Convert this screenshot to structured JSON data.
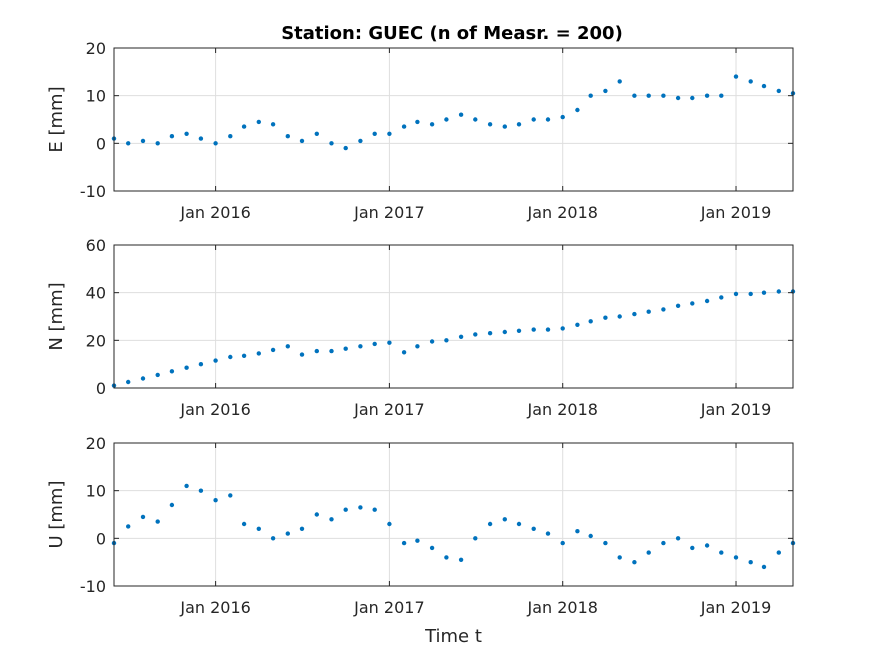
{
  "chart_data": [
    {
      "type": "scatter",
      "title": "Station: GUEC (n of Measr. = 200)",
      "ylabel": "E [mm]",
      "xlabel": "",
      "xlim": [
        "2015-06-01",
        "2019-05-01"
      ],
      "ylim": [
        -10,
        20
      ],
      "yticks": [
        -10,
        0,
        10,
        20
      ],
      "xticks": [
        {
          "date": "2016-01-01",
          "label": "Jan 2016"
        },
        {
          "date": "2017-01-01",
          "label": "Jan 2017"
        },
        {
          "date": "2018-01-01",
          "label": "Jan 2018"
        },
        {
          "date": "2019-01-01",
          "label": "Jan 2019"
        }
      ],
      "grid": true,
      "color": "#0072BD",
      "series": [
        {
          "x": [
            "2015-06-01",
            "2015-07-01",
            "2015-08-01",
            "2015-09-01",
            "2015-10-01",
            "2015-11-01",
            "2015-12-01",
            "2016-01-01",
            "2016-02-01",
            "2016-03-01",
            "2016-04-01",
            "2016-05-01",
            "2016-06-01",
            "2016-07-01",
            "2016-08-01",
            "2016-09-01",
            "2016-10-01",
            "2016-11-01",
            "2016-12-01",
            "2017-01-01",
            "2017-02-01",
            "2017-03-01",
            "2017-04-01",
            "2017-05-01",
            "2017-06-01",
            "2017-07-01",
            "2017-08-01",
            "2017-09-01",
            "2017-10-01",
            "2017-11-01",
            "2017-12-01",
            "2018-01-01",
            "2018-02-01",
            "2018-03-01",
            "2018-04-01",
            "2018-05-01",
            "2018-06-01",
            "2018-07-01",
            "2018-08-01",
            "2018-09-01",
            "2018-10-01",
            "2018-11-01",
            "2018-12-01",
            "2019-01-01",
            "2019-02-01",
            "2019-03-01",
            "2019-04-01",
            "2019-05-01"
          ],
          "y": [
            1.0,
            0.0,
            0.5,
            0.0,
            1.5,
            2.0,
            1.0,
            0.0,
            1.5,
            3.5,
            4.5,
            4.0,
            1.5,
            0.5,
            2.0,
            0.0,
            -1.0,
            0.5,
            2.0,
            2.0,
            3.5,
            4.5,
            4.0,
            5.0,
            6.0,
            5.0,
            4.0,
            3.5,
            4.0,
            5.0,
            5.0,
            5.5,
            7.0,
            10.0,
            11.0,
            13.0,
            10.0,
            10.0,
            10.0,
            9.5,
            9.5,
            10.0,
            10.0,
            14.0,
            13.0,
            12.0,
            11.0,
            10.5
          ]
        }
      ]
    },
    {
      "type": "scatter",
      "title": "",
      "ylabel": "N [mm]",
      "xlabel": "",
      "xlim": [
        "2015-06-01",
        "2019-05-01"
      ],
      "ylim": [
        0,
        60
      ],
      "yticks": [
        0,
        20,
        40,
        60
      ],
      "xticks": [
        {
          "date": "2016-01-01",
          "label": "Jan 2016"
        },
        {
          "date": "2017-01-01",
          "label": "Jan 2017"
        },
        {
          "date": "2018-01-01",
          "label": "Jan 2018"
        },
        {
          "date": "2019-01-01",
          "label": "Jan 2019"
        }
      ],
      "grid": true,
      "color": "#0072BD",
      "series": [
        {
          "x": [
            "2015-06-01",
            "2015-07-01",
            "2015-08-01",
            "2015-09-01",
            "2015-10-01",
            "2015-11-01",
            "2015-12-01",
            "2016-01-01",
            "2016-02-01",
            "2016-03-01",
            "2016-04-01",
            "2016-05-01",
            "2016-06-01",
            "2016-07-01",
            "2016-08-01",
            "2016-09-01",
            "2016-10-01",
            "2016-11-01",
            "2016-12-01",
            "2017-01-01",
            "2017-02-01",
            "2017-03-01",
            "2017-04-01",
            "2017-05-01",
            "2017-06-01",
            "2017-07-01",
            "2017-08-01",
            "2017-09-01",
            "2017-10-01",
            "2017-11-01",
            "2017-12-01",
            "2018-01-01",
            "2018-02-01",
            "2018-03-01",
            "2018-04-01",
            "2018-05-01",
            "2018-06-01",
            "2018-07-01",
            "2018-08-01",
            "2018-09-01",
            "2018-10-01",
            "2018-11-01",
            "2018-12-01",
            "2019-01-01",
            "2019-02-01",
            "2019-03-01",
            "2019-04-01",
            "2019-05-01"
          ],
          "y": [
            1.0,
            2.5,
            4.0,
            5.5,
            7.0,
            8.5,
            10.0,
            11.5,
            13.0,
            13.5,
            14.5,
            16.0,
            17.5,
            14.0,
            15.5,
            15.5,
            16.5,
            17.5,
            18.5,
            19.0,
            15.0,
            17.5,
            19.5,
            20.0,
            21.5,
            22.5,
            23.0,
            23.5,
            24.0,
            24.5,
            24.5,
            25.0,
            26.5,
            28.0,
            29.5,
            30.0,
            31.0,
            32.0,
            33.0,
            34.5,
            35.5,
            36.5,
            38.0,
            39.5,
            39.5,
            40.0,
            40.5,
            40.5
          ]
        }
      ]
    },
    {
      "type": "scatter",
      "title": "",
      "ylabel": "U [mm]",
      "xlabel": "Time t",
      "xlim": [
        "2015-06-01",
        "2019-05-01"
      ],
      "ylim": [
        -10,
        20
      ],
      "yticks": [
        -10,
        0,
        10,
        20
      ],
      "xticks": [
        {
          "date": "2016-01-01",
          "label": "Jan 2016"
        },
        {
          "date": "2017-01-01",
          "label": "Jan 2017"
        },
        {
          "date": "2018-01-01",
          "label": "Jan 2018"
        },
        {
          "date": "2019-01-01",
          "label": "Jan 2019"
        }
      ],
      "grid": true,
      "color": "#0072BD",
      "series": [
        {
          "x": [
            "2015-06-01",
            "2015-07-01",
            "2015-08-01",
            "2015-09-01",
            "2015-10-01",
            "2015-11-01",
            "2015-12-01",
            "2016-01-01",
            "2016-02-01",
            "2016-03-01",
            "2016-04-01",
            "2016-05-01",
            "2016-06-01",
            "2016-07-01",
            "2016-08-01",
            "2016-09-01",
            "2016-10-01",
            "2016-11-01",
            "2016-12-01",
            "2017-01-01",
            "2017-02-01",
            "2017-03-01",
            "2017-04-01",
            "2017-05-01",
            "2017-06-01",
            "2017-07-01",
            "2017-08-01",
            "2017-09-01",
            "2017-10-01",
            "2017-11-01",
            "2017-12-01",
            "2018-01-01",
            "2018-02-01",
            "2018-03-01",
            "2018-04-01",
            "2018-05-01",
            "2018-06-01",
            "2018-07-01",
            "2018-08-01",
            "2018-09-01",
            "2018-10-01",
            "2018-11-01",
            "2018-12-01",
            "2019-01-01",
            "2019-02-01",
            "2019-03-01",
            "2019-04-01",
            "2019-05-01"
          ],
          "y": [
            -1.0,
            2.5,
            4.5,
            3.5,
            7.0,
            11.0,
            10.0,
            8.0,
            9.0,
            3.0,
            2.0,
            0.0,
            1.0,
            2.0,
            5.0,
            4.0,
            6.0,
            6.5,
            6.0,
            3.0,
            -1.0,
            -0.5,
            -2.0,
            -4.0,
            -4.5,
            0.0,
            3.0,
            4.0,
            3.0,
            2.0,
            1.0,
            -1.0,
            1.5,
            0.5,
            -1.0,
            -4.0,
            -5.0,
            -3.0,
            -1.0,
            0.0,
            -2.0,
            -1.5,
            -3.0,
            -4.0,
            -5.0,
            -6.0,
            -3.0,
            -1.0
          ]
        }
      ]
    }
  ]
}
